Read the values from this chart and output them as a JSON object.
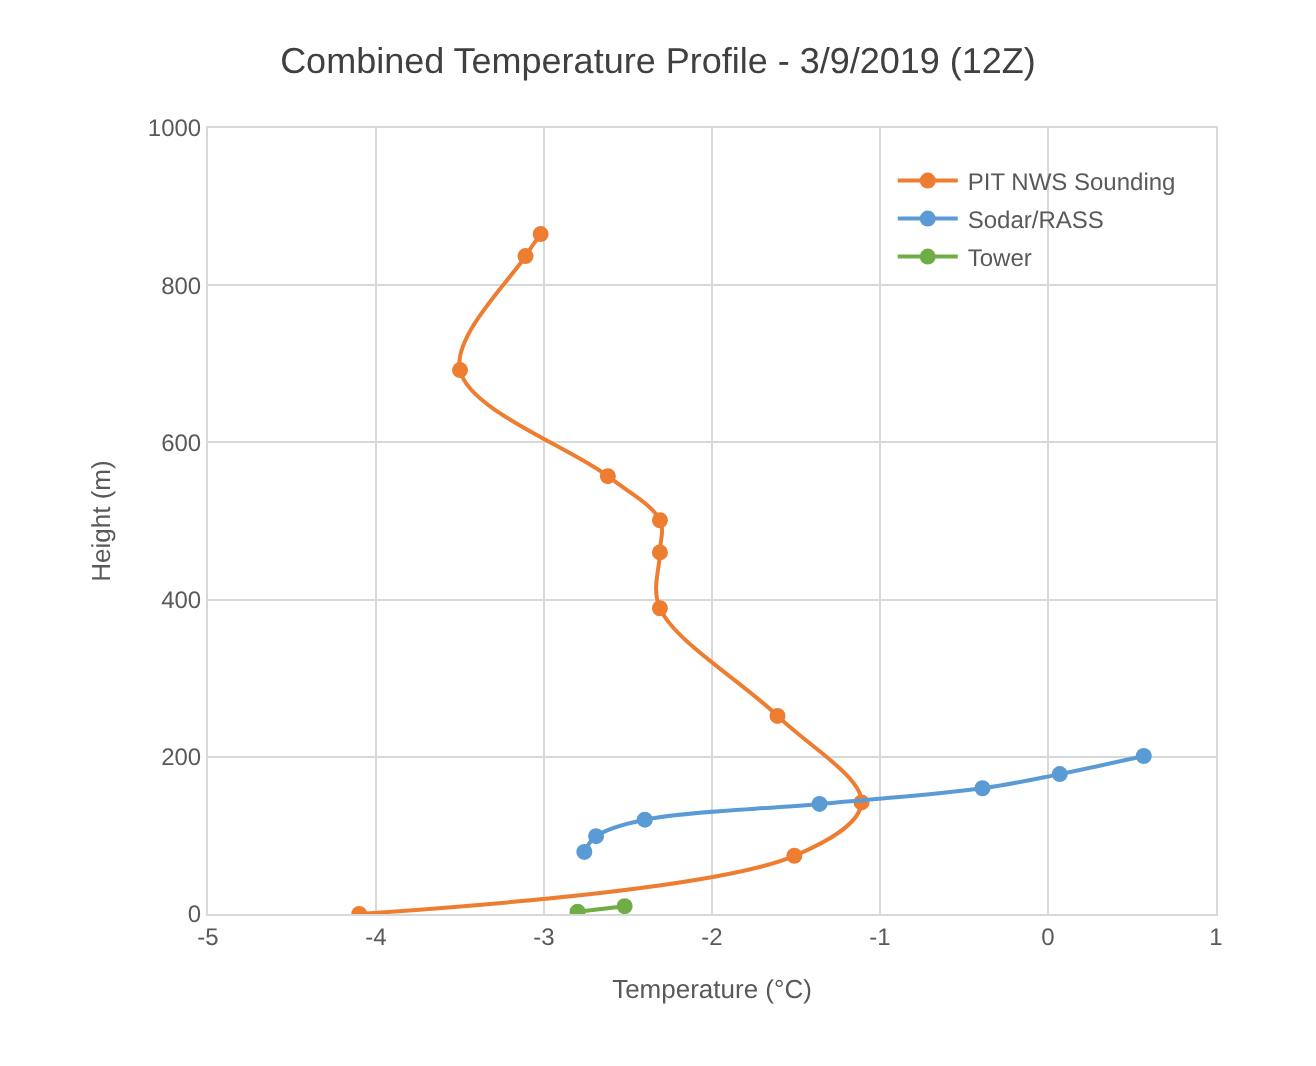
{
  "chart_data": {
    "type": "line",
    "title": "Combined Temperature Profile - 3/9/2019 (12Z)",
    "xlabel": "Temperature (°C)",
    "ylabel": "Height (m)",
    "xlim": [
      -5,
      1
    ],
    "xticks": [
      -5,
      -4,
      -3,
      -2,
      -1,
      0,
      1
    ],
    "ylim": [
      0,
      1000
    ],
    "yticks": [
      0,
      200,
      400,
      600,
      800,
      1000
    ],
    "grid": true,
    "legend": "top right",
    "marker": "circle",
    "line_style": "solid",
    "series": [
      {
        "name": "PIT NWS Sounding",
        "color": "#ed7d31",
        "x": [
          -4.1,
          -1.51,
          -1.11,
          -1.61,
          -2.31,
          -2.31,
          -2.31,
          -2.62,
          -3.5,
          -3.11,
          -3.02
        ],
        "values": [
          0,
          74,
          142,
          252,
          389,
          460,
          501,
          557,
          692,
          837,
          865
        ]
      },
      {
        "name": "Sodar/RASS",
        "color": "#5b9bd5",
        "x": [
          -2.76,
          -2.69,
          -2.4,
          -1.36,
          -0.39,
          0.07,
          0.57
        ],
        "values": [
          79,
          99,
          120,
          140,
          160,
          178,
          201
        ]
      },
      {
        "name": "Tower",
        "color": "#70ad47",
        "x": [
          -2.8,
          -2.52
        ],
        "values": [
          3,
          10
        ]
      }
    ]
  }
}
